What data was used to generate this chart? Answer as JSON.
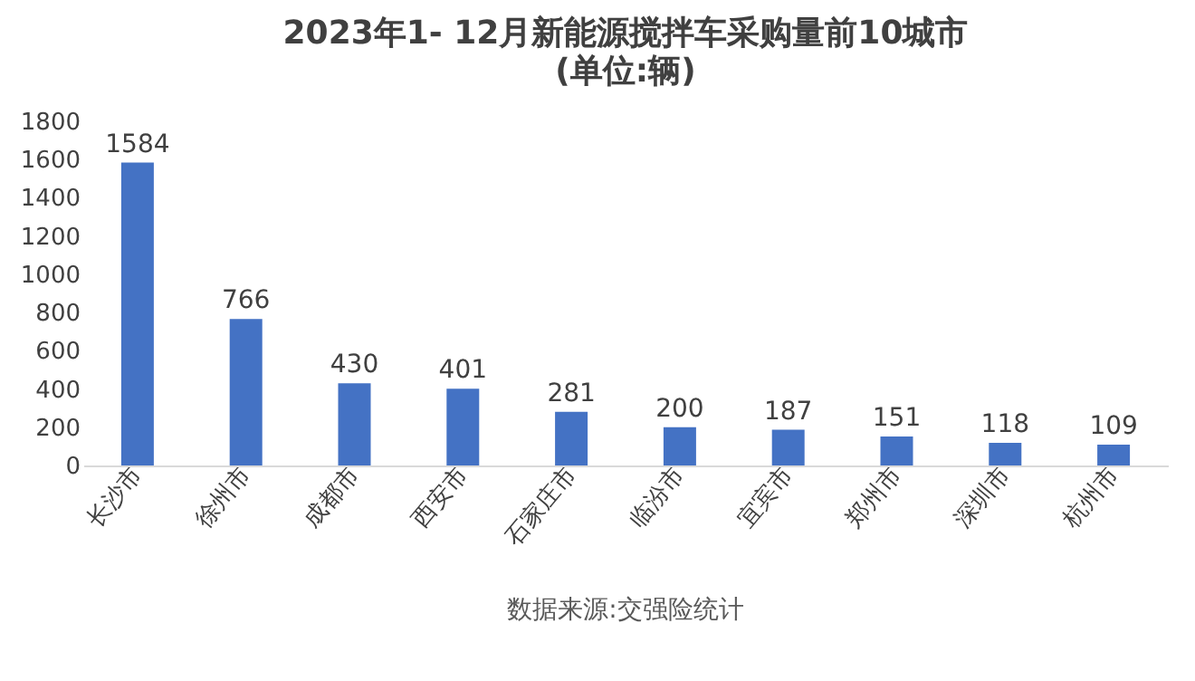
{
  "chart_data": {
    "type": "bar",
    "title": "2023年1- 12月新能源搅拌车采购量前10城市",
    "subtitle": "(单位:辆)",
    "categories": [
      "长沙市",
      "徐州市",
      "成都市",
      "西安市",
      "石家庄市",
      "临汾市",
      "宜宾市",
      "郑州市",
      "深圳市",
      "杭州市"
    ],
    "values": [
      1584,
      766,
      430,
      401,
      281,
      200,
      187,
      151,
      118,
      109
    ],
    "color": "#4472c4",
    "ylim": [
      0,
      1800
    ],
    "yticks": [
      0,
      200,
      400,
      600,
      800,
      1000,
      1200,
      1400,
      1600,
      1800
    ],
    "data_labels": true,
    "grid": false,
    "annotations": [
      "数据来源:交强险统计"
    ]
  }
}
